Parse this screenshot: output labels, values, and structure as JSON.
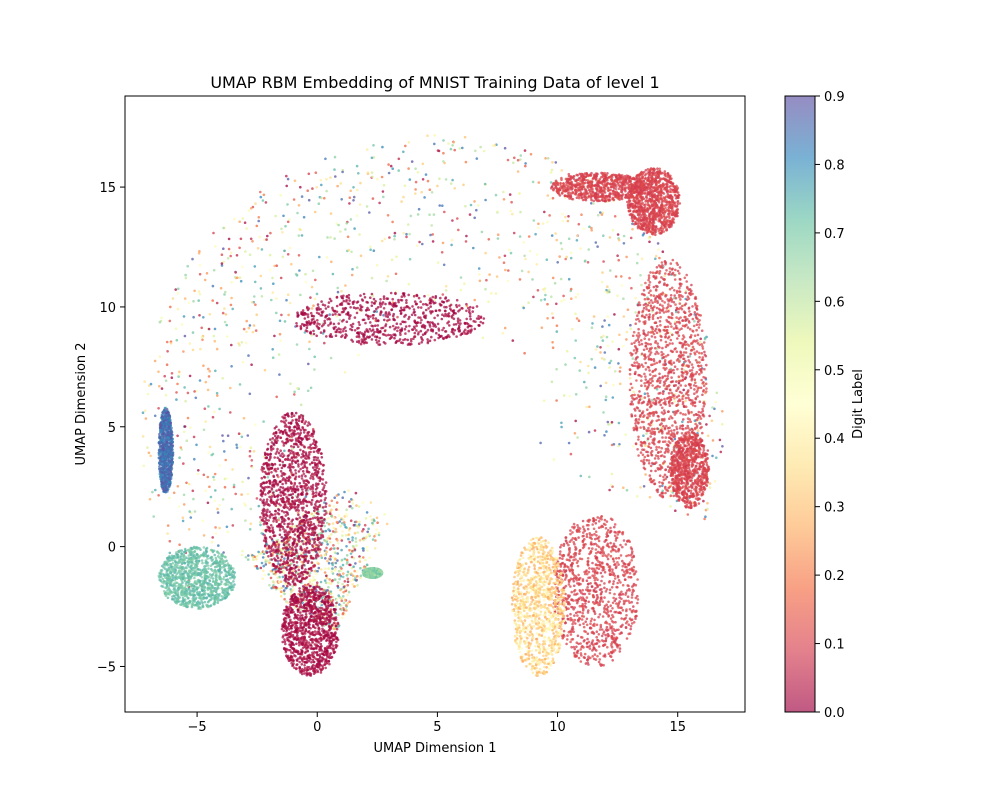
{
  "chart_data": {
    "type": "scatter",
    "title": "UMAP RBM Embedding of MNIST Training Data of level 1",
    "xlabel": "UMAP Dimension 1",
    "ylabel": "UMAP Dimension 2",
    "xlim": [
      -8.0,
      17.8
    ],
    "ylim": [
      -6.9,
      18.8
    ],
    "xticks": [
      -5,
      0,
      5,
      10,
      15
    ],
    "yticks": [
      -5,
      0,
      5,
      10,
      15
    ],
    "grid": false,
    "marker_alpha": 0.75,
    "colormap": "Spectral",
    "colorbar": {
      "label": "Digit Label",
      "range": [
        0.0,
        0.9
      ],
      "ticks": [
        "0.0",
        "0.1",
        "0.2",
        "0.3",
        "0.4",
        "0.5",
        "0.6",
        "0.7",
        "0.8",
        "0.9"
      ]
    },
    "regions": [
      {
        "shape": "arc",
        "center": [
          4.8,
          5.0
        ],
        "r_min": 4.2,
        "r_max": 12.2,
        "theta_deg": [
          -20,
          215
        ],
        "color_value_range": [
          0.0,
          0.9
        ],
        "density": 0.9
      },
      {
        "shape": "arc",
        "center": [
          4.8,
          5.0
        ],
        "r_min": 3.8,
        "r_max": 9.5,
        "theta_deg": [
          215,
          245
        ],
        "color_value_range": [
          0.0,
          0.9
        ],
        "density": 0.6
      },
      {
        "shape": "ellipse",
        "center": [
          -1.0,
          2.0
        ],
        "radii": [
          1.4,
          3.6
        ],
        "color_value_range": [
          0.0,
          0.04
        ],
        "density": 0.9
      },
      {
        "shape": "ellipse",
        "center": [
          -0.3,
          -3.5
        ],
        "radii": [
          1.2,
          1.9
        ],
        "color_value_range": [
          0.0,
          0.04
        ],
        "density": 0.7
      },
      {
        "shape": "ellipse",
        "center": [
          3.0,
          9.5
        ],
        "radii": [
          4.0,
          1.1
        ],
        "color_value_range": [
          0.0,
          0.03
        ],
        "density": 0.5
      },
      {
        "shape": "ellipse",
        "center": [
          11.7,
          15.0
        ],
        "radii": [
          2.0,
          0.6
        ],
        "color_value_range": [
          0.08,
          0.12
        ],
        "density": 0.5
      },
      {
        "shape": "ellipse",
        "center": [
          14.0,
          14.4
        ],
        "radii": [
          1.1,
          1.4
        ],
        "color_value_range": [
          0.08,
          0.12
        ],
        "density": 0.7
      },
      {
        "shape": "ellipse",
        "center": [
          14.6,
          7.0
        ],
        "radii": [
          1.6,
          5.0
        ],
        "color_value_range": [
          0.08,
          0.12
        ],
        "density": 0.9
      },
      {
        "shape": "ellipse",
        "center": [
          11.6,
          -1.8
        ],
        "radii": [
          1.8,
          3.2
        ],
        "color_value_range": [
          0.08,
          0.12
        ],
        "density": 0.7
      },
      {
        "shape": "ellipse",
        "center": [
          15.5,
          3.2
        ],
        "radii": [
          0.8,
          1.6
        ],
        "color_value_range": [
          0.08,
          0.12
        ],
        "density": 0.5
      },
      {
        "shape": "ellipse",
        "center": [
          -5.0,
          -1.3
        ],
        "radii": [
          1.6,
          1.3
        ],
        "color_value_range": [
          0.68,
          0.75
        ],
        "density": 0.7
      },
      {
        "shape": "ellipse",
        "center": [
          2.3,
          -1.1
        ],
        "radii": [
          0.4,
          0.2
        ],
        "color_value_range": [
          0.62,
          0.72
        ],
        "density": 1.0
      },
      {
        "shape": "ellipse",
        "center": [
          9.2,
          -2.5
        ],
        "radii": [
          1.1,
          2.9
        ],
        "color_value_range": [
          0.25,
          0.45
        ],
        "density": 0.7
      },
      {
        "shape": "ellipse",
        "center": [
          -6.3,
          4.0
        ],
        "radii": [
          0.3,
          1.8
        ],
        "color_value_range": [
          0.8,
          0.9
        ],
        "density": 0.6
      }
    ]
  }
}
